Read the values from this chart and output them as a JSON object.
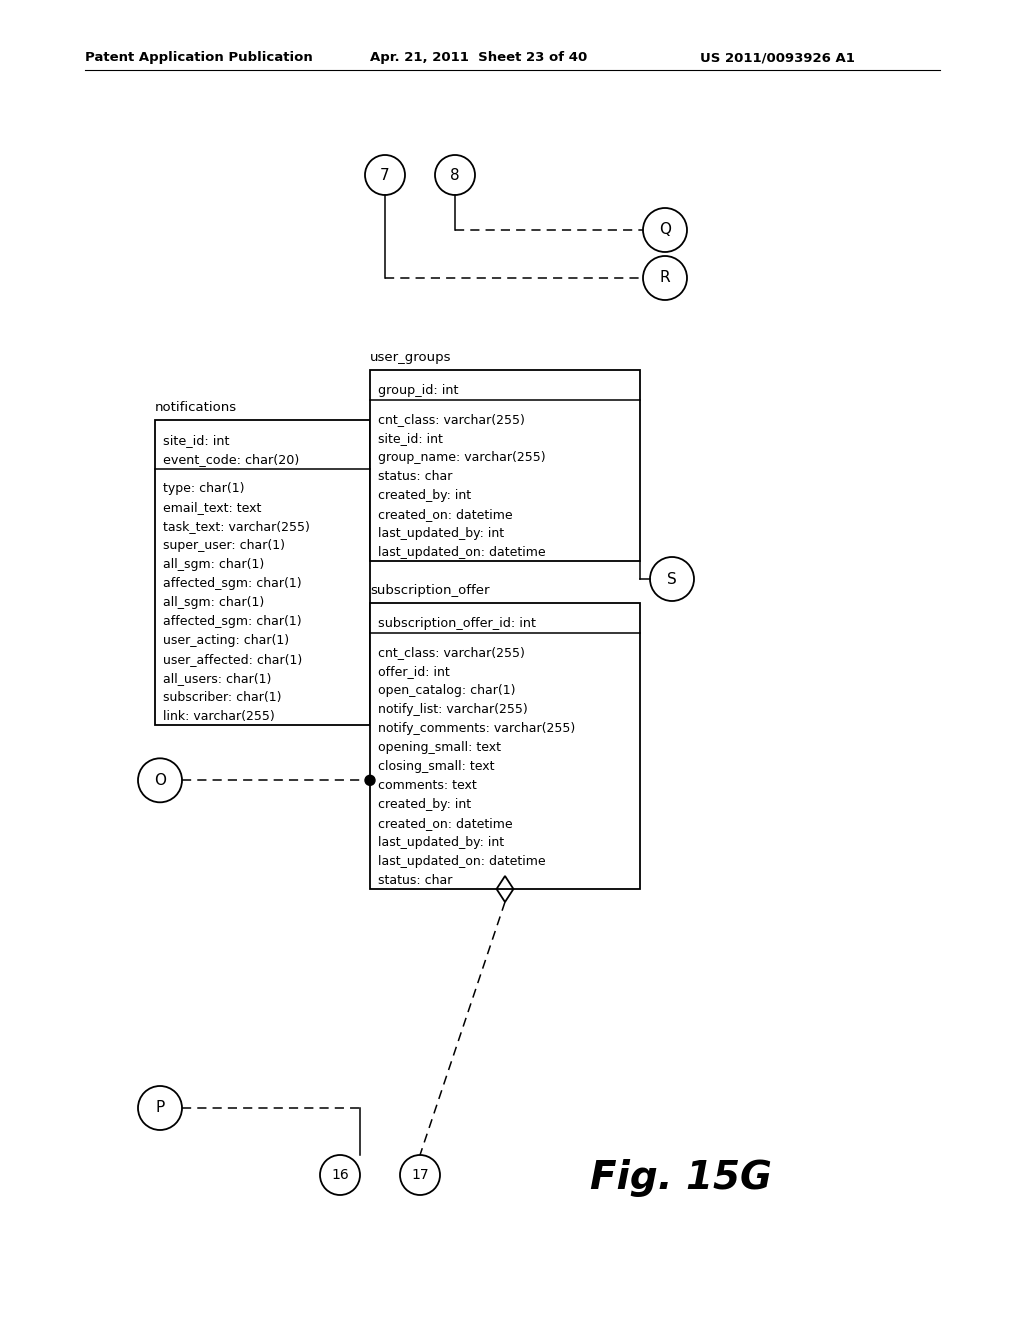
{
  "bg_color": "#ffffff",
  "header_text": "Patent Application Publication",
  "header_date": "Apr. 21, 2011  Sheet 23 of 40",
  "header_patent": "US 2011/0093926 A1",
  "fig_label": "Fig. 15G",
  "notif_title": "notifications",
  "notif_header": [
    "site_id: int",
    "event_code: char(20)"
  ],
  "notif_body": [
    "type: char(1)",
    "email_text: text",
    "task_text: varchar(255)",
    "super_user: char(1)",
    "all_sgm: char(1)",
    "affected_sgm: char(1)",
    "all_sgm: char(1)",
    "affected_sgm: char(1)",
    "user_acting: char(1)",
    "user_affected: char(1)",
    "all_users: char(1)",
    "subscriber: char(1)",
    "link: varchar(255)"
  ],
  "ug_title": "user_groups",
  "ug_header": [
    "group_id: int"
  ],
  "ug_body": [
    "cnt_class: varchar(255)",
    "site_id: int",
    "group_name: varchar(255)",
    "status: char",
    "created_by: int",
    "created_on: datetime",
    "last_updated_by: int",
    "last_updated_on: datetime"
  ],
  "sub_title": "subscription_offer",
  "sub_header": [
    "subscription_offer_id: int"
  ],
  "sub_body": [
    "cnt_class: varchar(255)",
    "offer_id: int",
    "open_catalog: char(1)",
    "notify_list: varchar(255)",
    "notify_comments: varchar(255)",
    "opening_small: text",
    "closing_small: text",
    "comments: text",
    "created_by: int",
    "created_on: datetime",
    "last_updated_by: int",
    "last_updated_on: datetime",
    "status: char"
  ]
}
